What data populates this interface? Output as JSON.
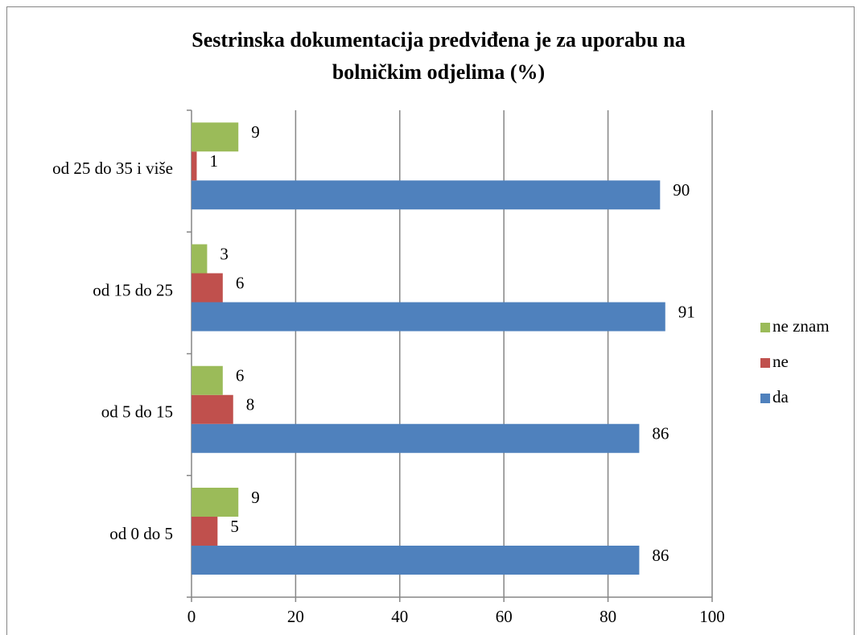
{
  "chart_data": {
    "type": "bar",
    "orientation": "horizontal",
    "title": [
      "Sestrinska dokumentacija predviđena je za uporabu na",
      "bolničkim odjelima (%)"
    ],
    "categories": [
      "od 0 do 5",
      "od 5 do 15",
      "od 15 do 25",
      "od 25 do 35 i više"
    ],
    "series": [
      {
        "name": "da",
        "color": "#4f81bd",
        "values": [
          86,
          86,
          91,
          90
        ]
      },
      {
        "name": "ne",
        "color": "#c0504d",
        "values": [
          5,
          8,
          6,
          1
        ]
      },
      {
        "name": "ne znam",
        "color": "#9bbb59",
        "values": [
          9,
          6,
          3,
          9
        ]
      }
    ],
    "xlim": [
      0,
      100
    ],
    "xticks": [
      0,
      20,
      40,
      60,
      80,
      100
    ],
    "grid": true,
    "legend": "right"
  }
}
